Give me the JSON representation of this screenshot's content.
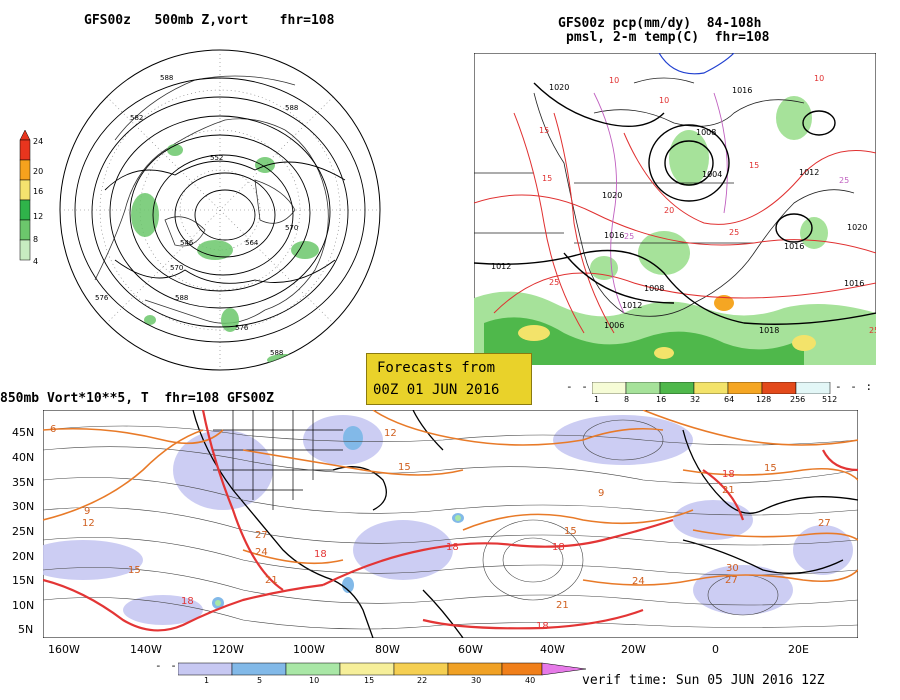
{
  "top_left": {
    "title": "GFS00z   500mb Z,vort    fhr=108",
    "colorbar": {
      "labels": [
        "24",
        "20",
        "16",
        "12",
        "8",
        "4"
      ],
      "colors": [
        "#e8351e",
        "#f6a21d",
        "#f4e36e",
        "#2fb34a",
        "#6cc76c",
        "#c7ecc0"
      ]
    }
  },
  "top_right": {
    "title_line1": "GFS00z pcp(mm/dy)  84-108h",
    "title_line2": "pmsl, 2-m temp(C)  fhr=108",
    "colorbar": {
      "labels": [
        "1",
        "8",
        "16",
        "32",
        "64",
        "128",
        "256",
        "512"
      ],
      "colors": [
        "#f6fcd6",
        "#a6e29a",
        "#4fb84b",
        "#f3e36a",
        "#f5a623",
        "#e34a1b",
        "#e3f7f7"
      ]
    }
  },
  "forecast_box": {
    "line1": "Forecasts from",
    "line2": "00Z 01 JUN 2016",
    "color": "#e9d22a"
  },
  "bottom": {
    "title": "850mb Vort*10**5, T  fhr=108 GFS00Z",
    "lat_labels": [
      "45N",
      "40N",
      "35N",
      "30N",
      "25N",
      "20N",
      "15N",
      "10N",
      "5N"
    ],
    "lon_labels": [
      "160W",
      "140W",
      "120W",
      "100W",
      "80W",
      "60W",
      "40W",
      "20W",
      "0",
      "20E"
    ],
    "colorbar": {
      "labels": [
        "1",
        "5",
        "10",
        "15",
        "22",
        "30",
        "40"
      ],
      "colors": [
        "#c7c8f2",
        "#82b9e8",
        "#a9e7a6",
        "#f6ef9a",
        "#f5cf52",
        "#f0a125",
        "#f07f1a",
        "#e67ae8"
      ]
    },
    "verif_time": "verif time: Sun 05 JUN 2016 12Z",
    "contour_labels": [
      "6",
      "9",
      "12",
      "15",
      "18",
      "21",
      "24",
      "27",
      "30"
    ]
  }
}
